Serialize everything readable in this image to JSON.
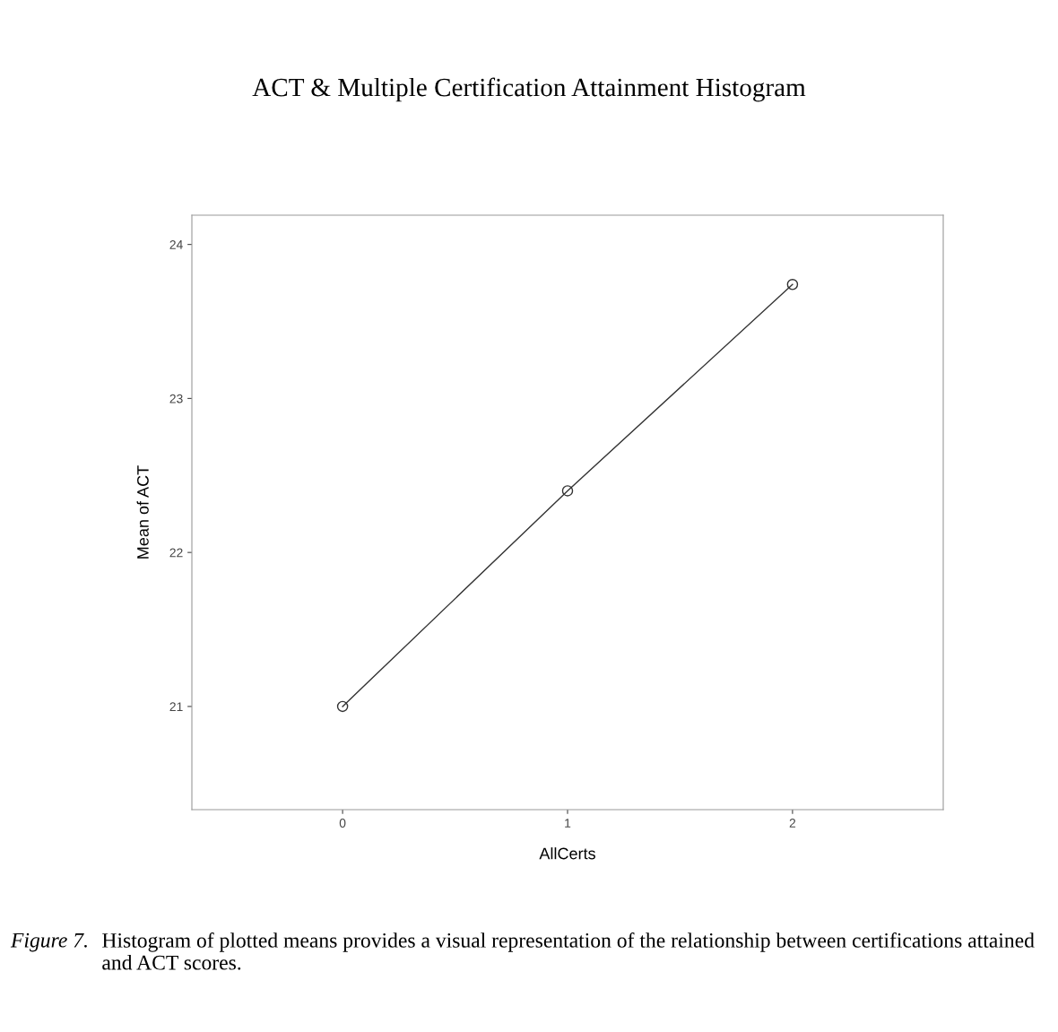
{
  "chart_data": {
    "type": "line",
    "title": "ACT & Multiple Certification Attainment Histogram",
    "xlabel": "AllCerts",
    "ylabel": "Mean of ACT",
    "x": [
      0,
      1,
      2
    ],
    "series": [
      {
        "color": "#333333",
        "values": [
          21.0,
          22.4,
          23.74
        ]
      }
    ],
    "xlim": [
      -0.67,
      2.67
    ],
    "xticks": [
      0,
      1,
      2
    ],
    "ylim": [
      20.33,
      24.19
    ],
    "yticks": [
      21,
      22,
      23,
      24
    ],
    "marker": "circle",
    "line_style": "solid",
    "grid": false,
    "legend": false,
    "annotations": [
      "Figure 7.",
      "Histogram of plotted means provides a visual representation of the relationship between certifications attained and ACT scores."
    ]
  }
}
